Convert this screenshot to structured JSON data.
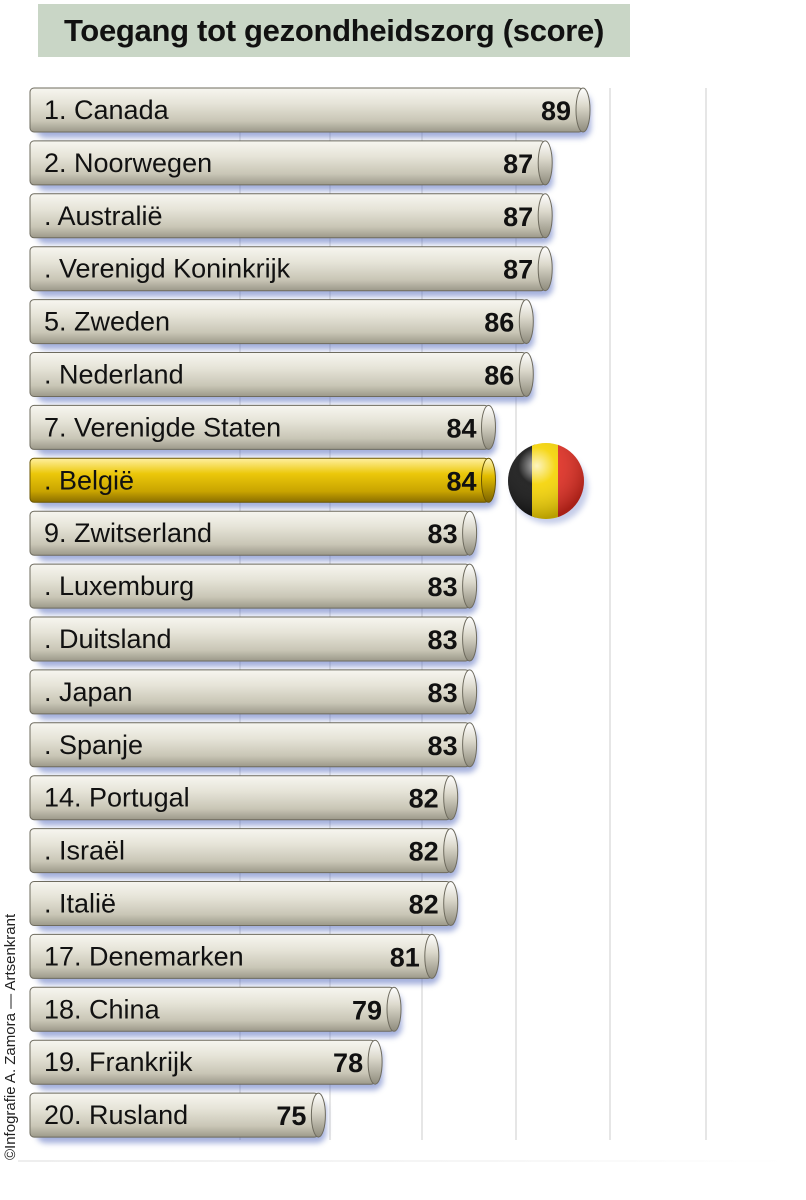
{
  "title": "Toegang tot gezondheidszorg (score)",
  "credit": "©Infografie A. Zamora — Artsenkrant",
  "colors": {
    "bar": "#e3e1d6",
    "highlight_bar": "#e4c200",
    "shadow": "#5a6fc0",
    "title_bg": "#c9d6c6",
    "flag_black": "#111111",
    "flag_yellow": "#f5d300",
    "flag_red": "#e02a1e"
  },
  "chart_data": {
    "type": "bar",
    "orientation": "horizontal",
    "title": "Toegang tot gezondheidszorg (score)",
    "categories": [
      "1. Canada",
      "2. Noorwegen",
      ". Australië",
      ". Verenigd Koninkrijk",
      "5. Zweden",
      ". Nederland",
      "7. Verenigde Staten",
      ". België",
      "9. Zwitserland",
      ". Luxemburg",
      ". Duitsland",
      ". Japan",
      ". Spanje",
      "14. Portugal",
      ". Israël",
      ". Italië",
      "17. Denemarken",
      "18. China",
      "19. Frankrijk",
      "20. Rusland"
    ],
    "values": [
      89,
      87,
      87,
      87,
      86,
      86,
      84,
      84,
      83,
      83,
      83,
      83,
      83,
      82,
      82,
      82,
      81,
      79,
      78,
      75
    ],
    "highlight": ". België",
    "highlight_icon": "belgian-flag-sphere-icon",
    "grid": true,
    "legend": "none"
  }
}
